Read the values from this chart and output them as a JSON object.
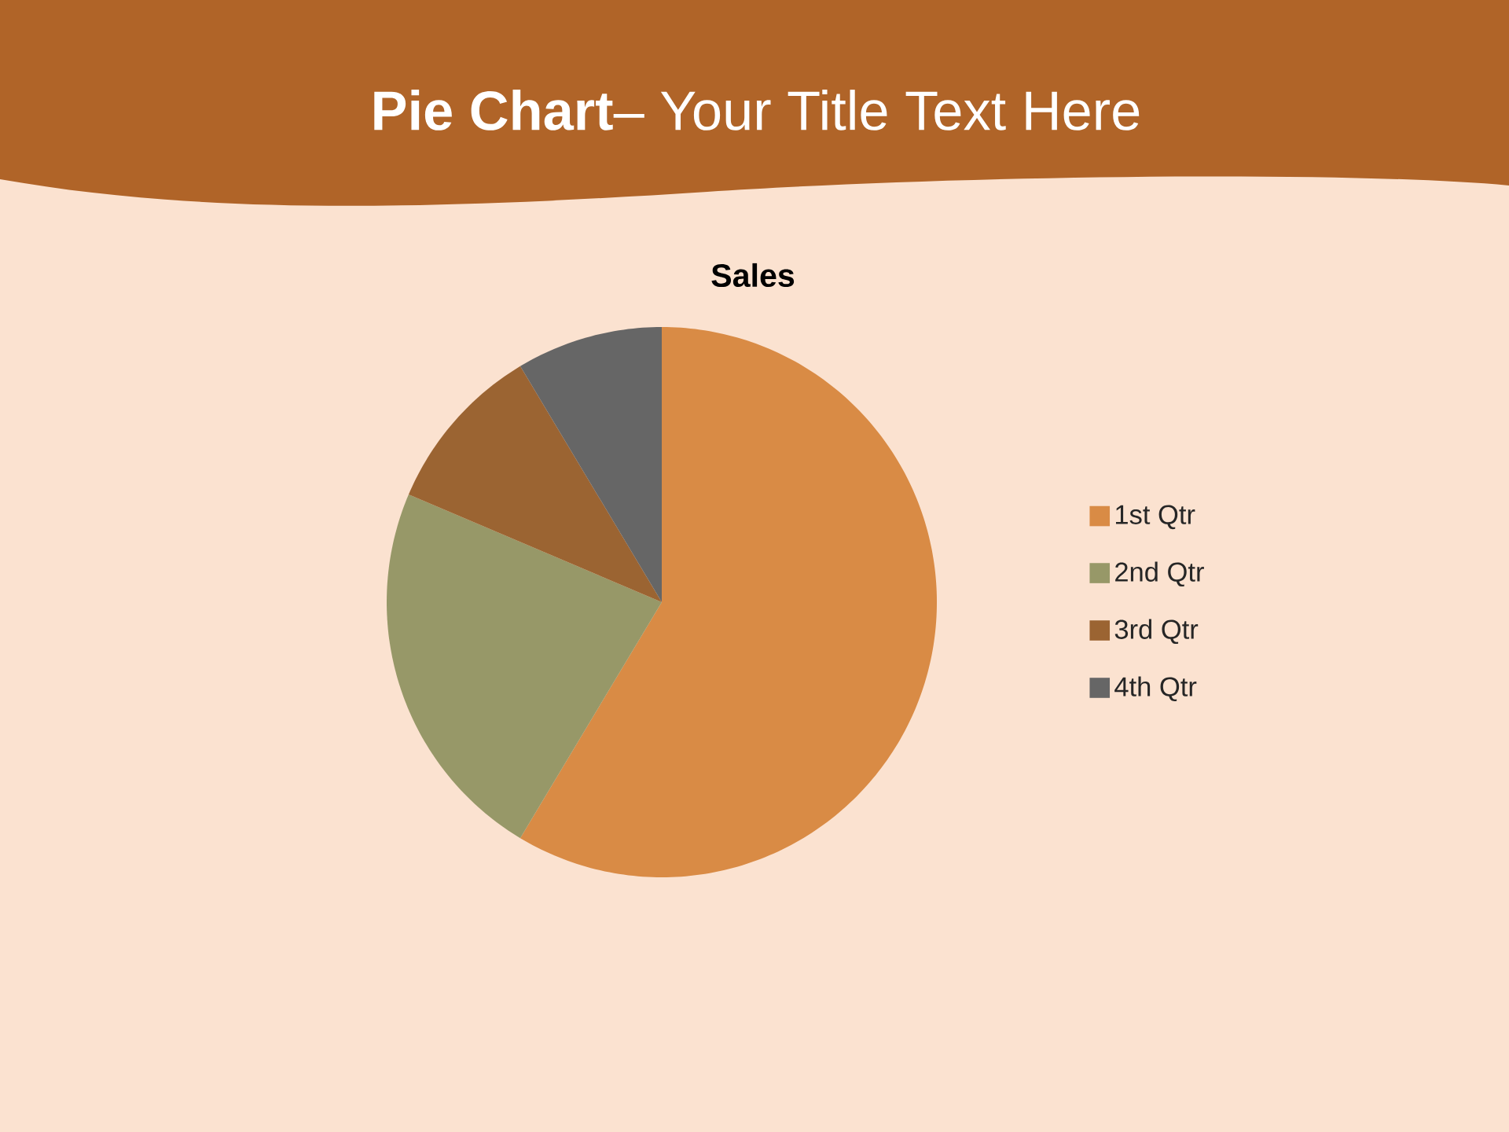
{
  "chart_data": {
    "type": "pie",
    "title": "**Pie Chart**– Your Title Text Here",
    "subtitle": "Sales",
    "categories": [
      "1st Qtr",
      "2nd Qtr",
      "3rd Qtr",
      "4th Qtr"
    ],
    "values": [
      58.6,
      22.8,
      10,
      8.6
    ],
    "colors": [
      "#d98b45",
      "#979868",
      "#9b6432",
      "#666666"
    ],
    "legend": "right"
  }
}
